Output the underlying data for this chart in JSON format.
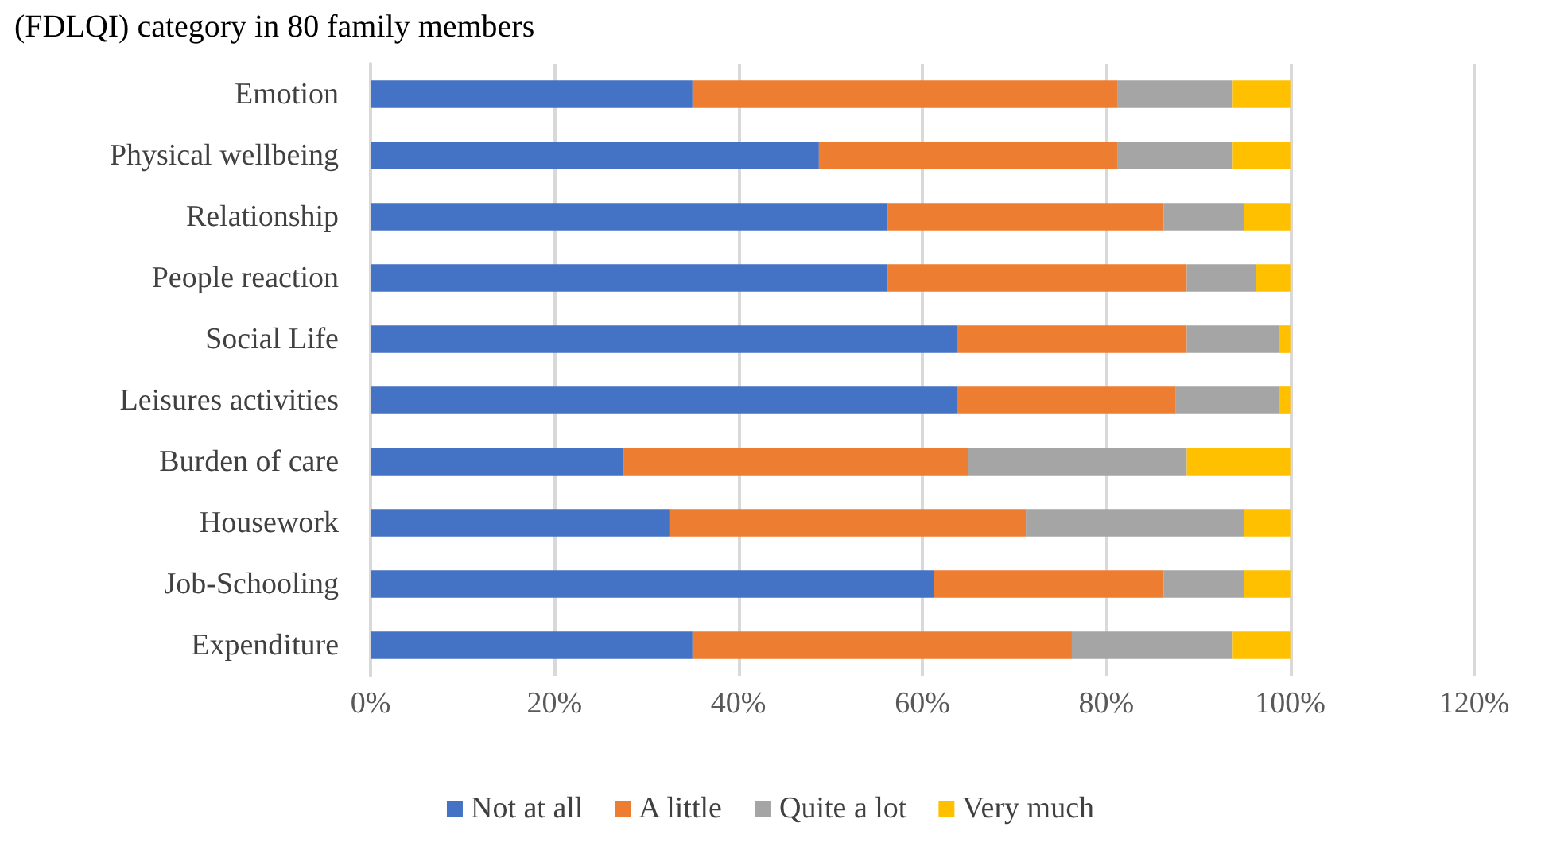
{
  "chart_data": {
    "type": "bar",
    "orientation": "horizontal",
    "stacked": true,
    "title": "(FDLQI) category in 80 family members",
    "categories": [
      "Emotion",
      "Physical wellbeing",
      "Relationship",
      "People reaction",
      "Social Life",
      "Leisures activities",
      "Burden of care",
      "Housework",
      "Job-Schooling",
      "Expenditure"
    ],
    "series": [
      {
        "name": "Not at all",
        "color": "#4472c4",
        "values": [
          35,
          48.75,
          56.25,
          56.25,
          63.75,
          63.75,
          27.5,
          32.5,
          61.25,
          35
        ]
      },
      {
        "name": "A little",
        "color": "#ed7d31",
        "values": [
          46.25,
          32.5,
          30,
          32.5,
          25,
          23.75,
          37.5,
          38.75,
          25,
          41.25
        ]
      },
      {
        "name": "Quite a lot",
        "color": "#a5a5a5",
        "values": [
          12.5,
          12.5,
          8.75,
          7.5,
          10,
          11.25,
          23.75,
          23.75,
          8.75,
          17.5
        ]
      },
      {
        "name": "Very much",
        "color": "#ffc000",
        "values": [
          6.25,
          6.25,
          5,
          3.75,
          1.25,
          1.25,
          11.25,
          5,
          5,
          6.25
        ]
      }
    ],
    "xlim": [
      0,
      120
    ],
    "xticks": [
      {
        "value": 0,
        "label": "0%"
      },
      {
        "value": 20,
        "label": "20%"
      },
      {
        "value": 40,
        "label": "40%"
      },
      {
        "value": 60,
        "label": "60%"
      },
      {
        "value": 80,
        "label": "80%"
      },
      {
        "value": 100,
        "label": "100%"
      },
      {
        "value": 120,
        "label": "120%"
      }
    ],
    "grid": "x",
    "legend": "bottom"
  }
}
